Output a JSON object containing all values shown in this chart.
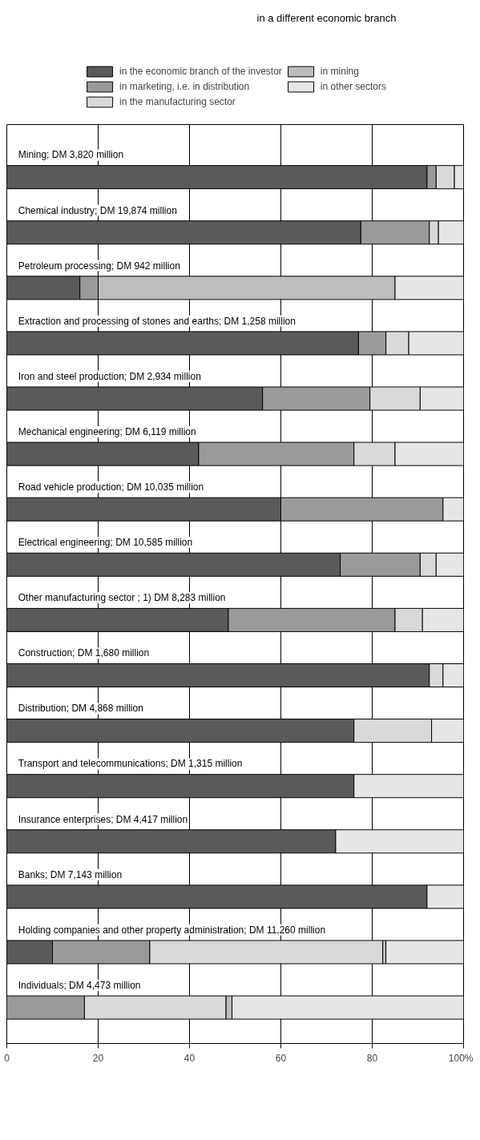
{
  "chart_data": {
    "type": "bar",
    "orientation": "horizontal",
    "stacked": true,
    "categories": [
      "Mining; DM 3,820 million",
      "Chemical industry; DM 19,874 million",
      "Petroleum processing; DM 942 million",
      "Extraction and processing of stones and earths; DM 1,258 million",
      "Iron and steel production; DM 2,934 million",
      "Mechanical engineering; DM 6,119 million",
      "Road vehicle production; DM 10,035 million",
      "Electrical engineering; DM 10,585 million",
      "Other manufacturing sector ; 1) DM 8,283 million",
      "Construction; DM 1,680 million",
      "Distribution; DM 4,868 million",
      "Transport and telecommunications; DM 1,315 million",
      "Insurance enterprises; DM 4,417 million",
      "Banks; DM 7,143 million",
      "Holding companies and other property administration; DM 11,260 million",
      "Individuals; DM 4,473 million"
    ],
    "series": [
      {
        "name": "in the economic branch of the investor",
        "color": "#5a5a5a",
        "values": [
          92,
          77.5,
          16,
          77,
          56,
          42,
          60,
          73,
          48.5,
          92.5,
          76,
          76,
          72,
          92,
          10,
          0
        ]
      },
      {
        "name": "in marketing, i.e. in distribution",
        "color": "#9a9a9a",
        "values": [
          2,
          15,
          4,
          6,
          23.5,
          34,
          35.5,
          17.5,
          36.5,
          0,
          0,
          0,
          0,
          0,
          21.3,
          17
        ]
      },
      {
        "name": "in the manufacturing sector",
        "color": "#d9d9d9",
        "values": [
          4,
          2,
          0,
          5,
          11,
          9,
          0,
          3.5,
          6,
          3,
          17,
          0,
          0,
          0,
          51,
          31
        ]
      },
      {
        "name": "in mining",
        "color": "#bdbdbd",
        "values": [
          0,
          0,
          65,
          0,
          0,
          0,
          0,
          0,
          0,
          0,
          0,
          0,
          0,
          0,
          0.7,
          1.3
        ]
      },
      {
        "name": "in other sectors",
        "color": "#e6e6e6",
        "values": [
          2,
          5.5,
          15,
          12,
          9.5,
          15,
          4.5,
          6,
          9,
          4.5,
          7,
          24,
          28,
          8,
          17,
          50.7
        ]
      }
    ],
    "xlim": [
      0,
      100
    ],
    "xticks": [
      0,
      20,
      40,
      60,
      80,
      {
        "value": 100,
        "label": "100%"
      }
    ],
    "grid": "x",
    "legend": "top",
    "tick_labels": "x",
    "annotations": [
      "in a different economic branch"
    ]
  }
}
